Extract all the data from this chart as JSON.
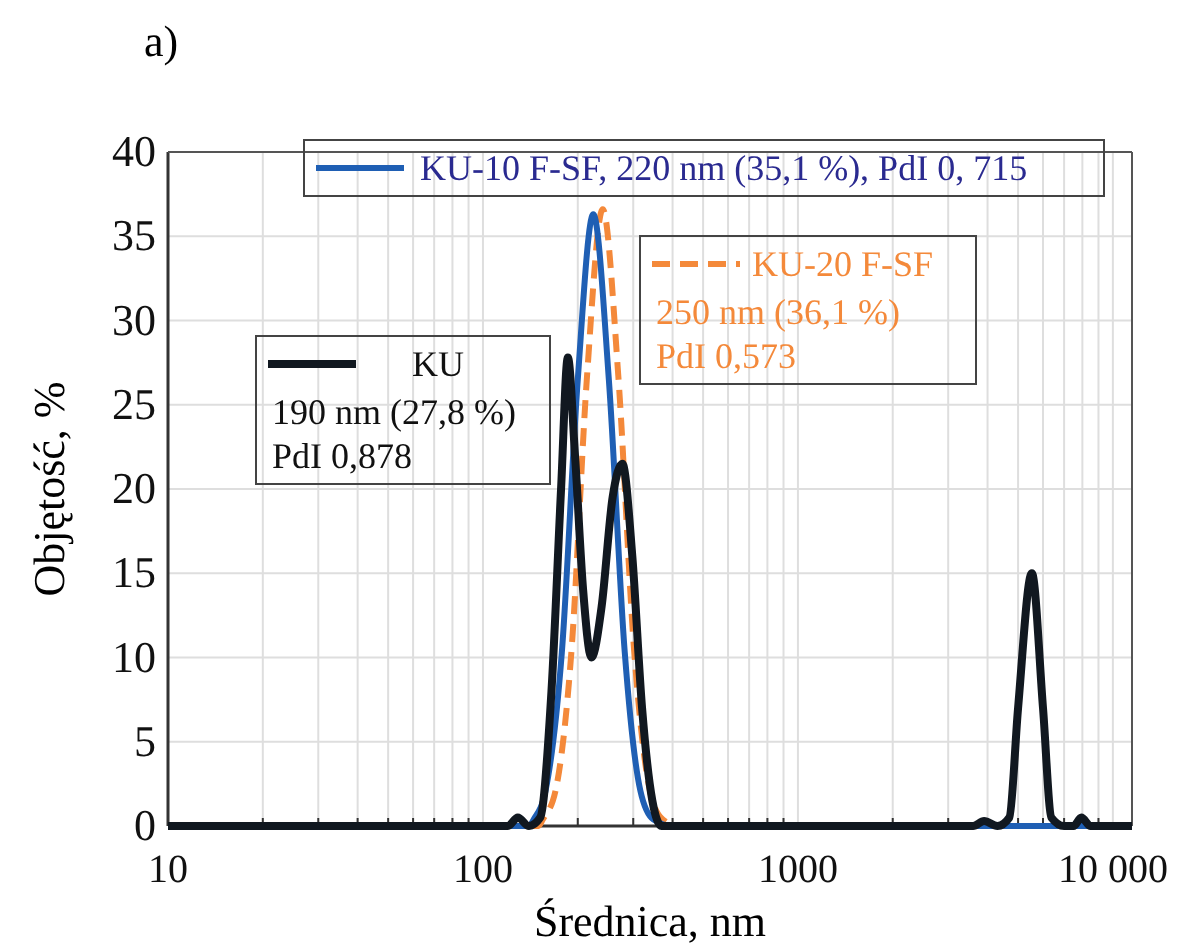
{
  "chart_data": {
    "type": "line",
    "title": "a)",
    "xlabel": "Średnica, nm",
    "ylabel": "Objętość, %",
    "log": "x",
    "grid": true,
    "legend": "top",
    "xlim": [
      10,
      11500
    ],
    "ylim": [
      0,
      40
    ],
    "xticks": [
      10,
      {
        "value": 20,
        "label": null
      },
      {
        "value": 30,
        "label": null
      },
      {
        "value": 40,
        "label": null
      },
      {
        "value": 50,
        "label": null
      },
      {
        "value": 60,
        "label": null
      },
      {
        "value": 70,
        "label": null
      },
      {
        "value": 80,
        "label": null
      },
      {
        "value": 90,
        "label": null
      },
      100,
      {
        "value": 200,
        "label": null
      },
      {
        "value": 300,
        "label": null
      },
      {
        "value": 400,
        "label": null
      },
      {
        "value": 500,
        "label": null
      },
      {
        "value": 600,
        "label": null
      },
      {
        "value": 700,
        "label": null
      },
      {
        "value": 800,
        "label": null
      },
      {
        "value": 900,
        "label": null
      },
      1000,
      {
        "value": 2000,
        "label": null
      },
      {
        "value": 3000,
        "label": null
      },
      {
        "value": 4000,
        "label": null
      },
      {
        "value": 5000,
        "label": null
      },
      {
        "value": 6000,
        "label": null
      },
      {
        "value": 7000,
        "label": null
      },
      {
        "value": 8000,
        "label": null
      },
      {
        "value": 9000,
        "label": null
      },
      {
        "value": 10000,
        "label": "10 000"
      }
    ],
    "yticks": [
      0,
      5,
      10,
      15,
      20,
      25,
      30,
      35,
      40
    ],
    "series": [
      {
        "name": "KU-10 F-SF, 220 nm (35,1 %), PdI 0, 715",
        "color": "#1f5fb4",
        "line_style": "solid",
        "x": [
          10,
          100,
          140,
          145,
          158,
          178,
          200,
          224,
          251,
          282,
          316,
          347,
          400,
          1000,
          10000,
          11500
        ],
        "values": [
          0,
          0,
          0,
          0.4,
          2.1,
          10.3,
          26.5,
          36.3,
          26.5,
          10.3,
          2.1,
          0.4,
          0,
          0,
          0,
          0
        ]
      },
      {
        "name": "KU-20 F-SF",
        "color": "#f4893a",
        "line_style": "dashed",
        "x": [
          10,
          100,
          150,
          155,
          170,
          191,
          214,
          240,
          269,
          302,
          339,
          372,
          420,
          1000
        ],
        "values": [
          0,
          0,
          0,
          0.4,
          2.1,
          10.4,
          26.7,
          36.6,
          26.7,
          10.4,
          2.1,
          0.4,
          0,
          0
        ]
      },
      {
        "name": "KU",
        "color": "#111820",
        "line_style": "solid",
        "x": [
          10,
          100,
          120,
          129,
          140,
          152,
          165,
          177,
          186,
          196,
          208,
          221,
          238,
          258,
          277,
          298,
          320,
          345,
          369,
          1000,
          3600,
          3900,
          4300,
          4690,
          5000,
          5530,
          6000,
          6380,
          7000,
          7500,
          7940,
          8500,
          11500
        ],
        "values": [
          0,
          0,
          0,
          0.5,
          0,
          0.5,
          8,
          20,
          27.8,
          22,
          14,
          10,
          13,
          19.5,
          21.5,
          16,
          7,
          1.5,
          0,
          0,
          0,
          0.3,
          0,
          0.5,
          7,
          15,
          7,
          0.5,
          0,
          0,
          0.5,
          0,
          0
        ]
      }
    ],
    "annotations": [
      "250 nm (36,1 %)",
      "PdI 0,573",
      "190 nm (27,8 %)",
      "PdI 0,878"
    ]
  }
}
